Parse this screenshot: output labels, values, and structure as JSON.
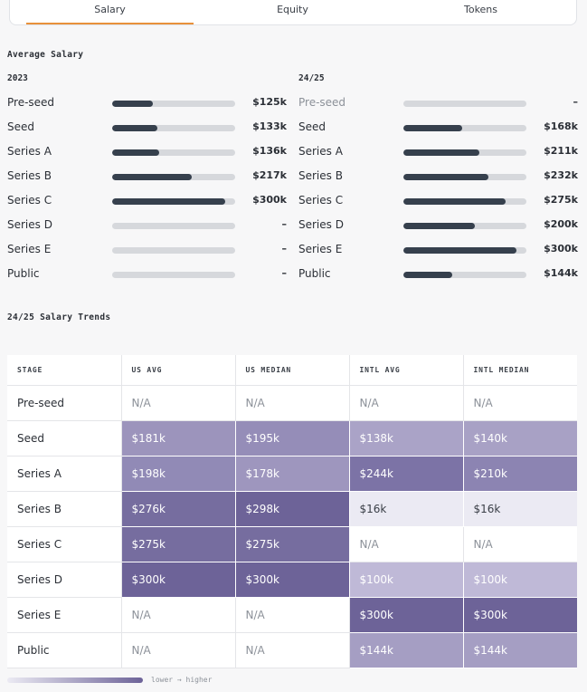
{
  "tabs": [
    "Salary",
    "Equity",
    "Tokens"
  ],
  "active_tab": "Salary",
  "average_salary": {
    "title": "Average Salary",
    "columns": [
      {
        "year": "2023",
        "rows": [
          {
            "stage": "Pre-seed",
            "value": "$125k",
            "fill": 0.33
          },
          {
            "stage": "Seed",
            "value": "$133k",
            "fill": 0.37
          },
          {
            "stage": "Series A",
            "value": "$136k",
            "fill": 0.38
          },
          {
            "stage": "Series B",
            "value": "$217k",
            "fill": 0.65
          },
          {
            "stage": "Series C",
            "value": "$300k",
            "fill": 0.92
          },
          {
            "stage": "Series D",
            "value": "–",
            "fill": 0
          },
          {
            "stage": "Series E",
            "value": "–",
            "fill": 0
          },
          {
            "stage": "Public",
            "value": "–",
            "fill": 0
          }
        ]
      },
      {
        "year": "24/25",
        "rows": [
          {
            "stage": "Pre-seed",
            "value": "–",
            "fill": 0
          },
          {
            "stage": "Seed",
            "value": "$168k",
            "fill": 0.48
          },
          {
            "stage": "Series A",
            "value": "$211k",
            "fill": 0.62
          },
          {
            "stage": "Series B",
            "value": "$232k",
            "fill": 0.69
          },
          {
            "stage": "Series C",
            "value": "$275k",
            "fill": 0.83
          },
          {
            "stage": "Series D",
            "value": "$200k",
            "fill": 0.58
          },
          {
            "stage": "Series E",
            "value": "$300k",
            "fill": 0.92
          },
          {
            "stage": "Public",
            "value": "$144k",
            "fill": 0.4
          }
        ]
      }
    ]
  },
  "trends": {
    "title": "24/25 Salary Trends",
    "headers": [
      "STAGE",
      "US AVG",
      "US MEDIAN",
      "INTL AVG",
      "INTL MEDIAN"
    ],
    "rows": [
      {
        "stage": "Pre-seed",
        "cells": [
          {
            "v": "N/A",
            "c": ""
          },
          {
            "v": "N/A",
            "c": ""
          },
          {
            "v": "N/A",
            "c": ""
          },
          {
            "v": "N/A",
            "c": ""
          }
        ]
      },
      {
        "stage": "Seed",
        "cells": [
          {
            "v": "$181k",
            "c": "#9c94bc"
          },
          {
            "v": "$195k",
            "c": "#958db8"
          },
          {
            "v": "$138k",
            "c": "#aaa3c7"
          },
          {
            "v": "$140k",
            "c": "#a8a1c5"
          }
        ]
      },
      {
        "stage": "Series A",
        "cells": [
          {
            "v": "$198k",
            "c": "#918ab6"
          },
          {
            "v": "$178k",
            "c": "#9e96be"
          },
          {
            "v": "$244k",
            "c": "#7c73a6"
          },
          {
            "v": "$210k",
            "c": "#8c84b2"
          }
        ]
      },
      {
        "stage": "Series B",
        "cells": [
          {
            "v": "$276k",
            "c": "#766d9f"
          },
          {
            "v": "$298k",
            "c": "#6d6398"
          },
          {
            "v": "$16k",
            "c": "#ebeaf3"
          },
          {
            "v": "$16k",
            "c": "#ebeaf3"
          }
        ]
      },
      {
        "stage": "Series C",
        "cells": [
          {
            "v": "$275k",
            "c": "#766d9f"
          },
          {
            "v": "$275k",
            "c": "#766d9f"
          },
          {
            "v": "N/A",
            "c": ""
          },
          {
            "v": "N/A",
            "c": ""
          }
        ]
      },
      {
        "stage": "Series D",
        "cells": [
          {
            "v": "$300k",
            "c": "#6d6398"
          },
          {
            "v": "$300k",
            "c": "#6d6398"
          },
          {
            "v": "$100k",
            "c": "#bfb9d7"
          },
          {
            "v": "$100k",
            "c": "#bfb9d7"
          }
        ]
      },
      {
        "stage": "Series E",
        "cells": [
          {
            "v": "N/A",
            "c": ""
          },
          {
            "v": "N/A",
            "c": ""
          },
          {
            "v": "$300k",
            "c": "#6d6398"
          },
          {
            "v": "$300k",
            "c": "#6d6398"
          }
        ]
      },
      {
        "stage": "Public",
        "cells": [
          {
            "v": "N/A",
            "c": ""
          },
          {
            "v": "N/A",
            "c": ""
          },
          {
            "v": "$144k",
            "c": "#a59ec3"
          },
          {
            "v": "$144k",
            "c": "#a59ec3"
          }
        ]
      }
    ]
  },
  "legend": {
    "text": "lower → higher"
  }
}
